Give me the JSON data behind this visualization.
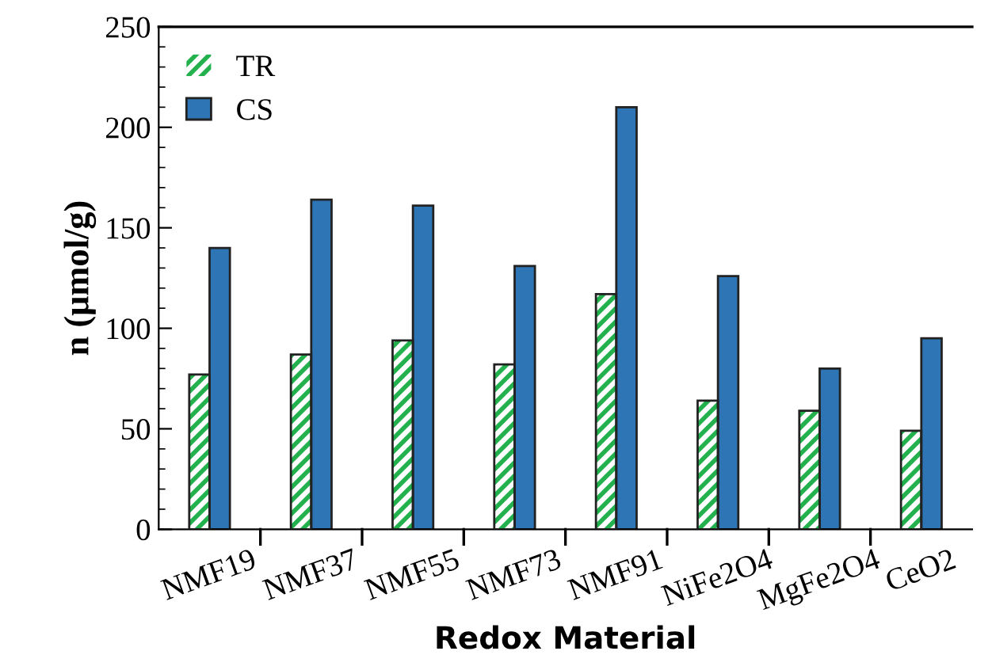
{
  "chart_data": {
    "type": "bar",
    "xlabel": "Redox Material",
    "ylabel": "n (μmol/g)",
    "categories": [
      "NMF19",
      "NMF37",
      "NMF55",
      "NMF73",
      "NMF91",
      "NiFe2O4",
      "MgFe2O4",
      "CeO2"
    ],
    "series": [
      {
        "name": "TR",
        "color": "#22b14c",
        "values": [
          77,
          87,
          94,
          82,
          117,
          64,
          59,
          49
        ]
      },
      {
        "name": "CS",
        "color": "#2e75b6",
        "values": [
          140,
          164,
          161,
          131,
          210,
          126,
          80,
          95
        ]
      }
    ],
    "ylim": [
      0,
      250
    ],
    "yticks": [
      0,
      50,
      100,
      150,
      200,
      250
    ],
    "grid": false,
    "legend": "top left"
  }
}
